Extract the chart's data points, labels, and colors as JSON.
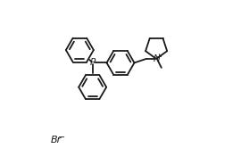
{
  "background_color": "#ffffff",
  "line_color": "#1a1a1a",
  "line_width": 1.3,
  "fig_width": 2.7,
  "fig_height": 1.76,
  "r_hex": 0.088,
  "P_label": "P",
  "N_label": "N",
  "Br_label": "Br"
}
